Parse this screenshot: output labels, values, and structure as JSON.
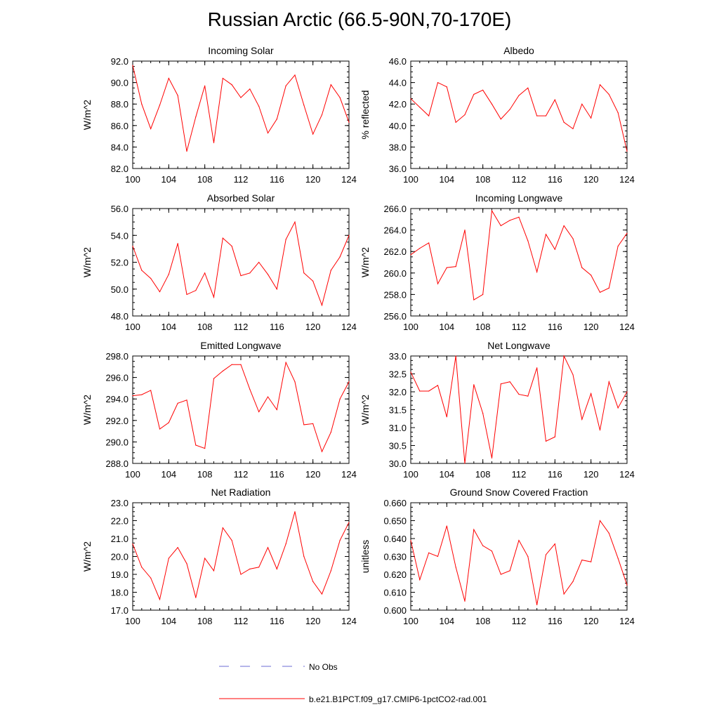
{
  "title": "Russian Arctic (66.5-90N,70-170E)",
  "legend": {
    "obs_label": "No Obs",
    "model_label": "b.e21.B1PCT.f09_g17.CMIP6-1pctCO2-rad.001",
    "obs_color": "#6b6bd6",
    "model_color": "#ff0000"
  },
  "chart_data": [
    {
      "type": "line",
      "title": "Incoming Solar",
      "ylabel": "W/m^2",
      "ylim": [
        82,
        92
      ],
      "yticks": [
        82,
        84,
        86,
        88,
        90,
        92
      ],
      "ydec": 1,
      "xticks": [
        100,
        104,
        108,
        112,
        116,
        120,
        124
      ],
      "xlim": [
        100,
        124
      ],
      "x": [
        100,
        101,
        102,
        103,
        104,
        105,
        106,
        107,
        108,
        109,
        110,
        111,
        112,
        113,
        114,
        115,
        116,
        117,
        118,
        119,
        120,
        121,
        122,
        123,
        124
      ],
      "series": [
        {
          "values": [
            91.6,
            88.0,
            85.7,
            87.9,
            90.4,
            88.8,
            83.6,
            86.8,
            89.7,
            84.4,
            90.4,
            89.8,
            88.6,
            89.4,
            87.8,
            85.3,
            86.6,
            89.7,
            90.7,
            87.9,
            85.2,
            87.0,
            89.8,
            88.6,
            86.3
          ]
        }
      ]
    },
    {
      "type": "line",
      "title": "Albedo",
      "ylabel": "% reflected",
      "ylim": [
        36,
        46
      ],
      "yticks": [
        36,
        38,
        40,
        42,
        44,
        46
      ],
      "ydec": 1,
      "xticks": [
        100,
        104,
        108,
        112,
        116,
        120,
        124
      ],
      "xlim": [
        100,
        124
      ],
      "x": [
        100,
        101,
        102,
        103,
        104,
        105,
        106,
        107,
        108,
        109,
        110,
        111,
        112,
        113,
        114,
        115,
        116,
        117,
        118,
        119,
        120,
        121,
        122,
        123,
        124
      ],
      "series": [
        {
          "values": [
            42.5,
            41.7,
            40.9,
            44.0,
            43.6,
            40.3,
            41.0,
            42.9,
            43.3,
            42.0,
            40.6,
            41.5,
            42.8,
            43.5,
            40.9,
            40.9,
            42.4,
            40.3,
            39.7,
            42.0,
            40.7,
            43.8,
            42.9,
            41.2,
            37.6
          ]
        }
      ]
    },
    {
      "type": "line",
      "title": "Absorbed Solar",
      "ylabel": "W/m^2",
      "ylim": [
        48,
        56
      ],
      "yticks": [
        48,
        50,
        52,
        54,
        56
      ],
      "ydec": 1,
      "xticks": [
        100,
        104,
        108,
        112,
        116,
        120,
        124
      ],
      "xlim": [
        100,
        124
      ],
      "x": [
        100,
        101,
        102,
        103,
        104,
        105,
        106,
        107,
        108,
        109,
        110,
        111,
        112,
        113,
        114,
        115,
        116,
        117,
        118,
        119,
        120,
        121,
        122,
        123,
        124
      ],
      "series": [
        {
          "values": [
            53.2,
            51.4,
            50.8,
            49.8,
            51.1,
            53.4,
            49.6,
            49.9,
            51.2,
            49.4,
            53.8,
            53.2,
            51.0,
            51.2,
            52.0,
            51.1,
            50.0,
            53.7,
            55.0,
            51.2,
            50.6,
            48.8,
            51.4,
            52.4,
            54.0
          ]
        }
      ]
    },
    {
      "type": "line",
      "title": "Incoming Longwave",
      "ylabel": "W/m^2",
      "ylim": [
        256,
        266
      ],
      "yticks": [
        256,
        258,
        260,
        262,
        264,
        266
      ],
      "ydec": 1,
      "xticks": [
        100,
        104,
        108,
        112,
        116,
        120,
        124
      ],
      "xlim": [
        100,
        124
      ],
      "x": [
        100,
        101,
        102,
        103,
        104,
        105,
        106,
        107,
        108,
        109,
        110,
        111,
        112,
        113,
        114,
        115,
        116,
        117,
        118,
        119,
        120,
        121,
        122,
        123,
        124
      ],
      "series": [
        {
          "values": [
            261.7,
            262.3,
            262.8,
            259.0,
            260.5,
            260.6,
            264.0,
            257.5,
            258.0,
            265.8,
            264.4,
            264.9,
            265.2,
            263.0,
            260.1,
            263.6,
            262.2,
            264.4,
            263.2,
            260.5,
            259.8,
            258.2,
            258.6,
            262.5,
            263.7
          ]
        }
      ]
    },
    {
      "type": "line",
      "title": "Emitted Longwave",
      "ylabel": "W/m^2",
      "ylim": [
        288,
        298
      ],
      "yticks": [
        288,
        290,
        292,
        294,
        296,
        298
      ],
      "ydec": 1,
      "xticks": [
        100,
        104,
        108,
        112,
        116,
        120,
        124
      ],
      "xlim": [
        100,
        124
      ],
      "x": [
        100,
        101,
        102,
        103,
        104,
        105,
        106,
        107,
        108,
        109,
        110,
        111,
        112,
        113,
        114,
        115,
        116,
        117,
        118,
        119,
        120,
        121,
        122,
        123,
        124
      ],
      "series": [
        {
          "values": [
            294.3,
            294.4,
            294.8,
            291.2,
            291.8,
            293.6,
            293.9,
            289.7,
            289.4,
            295.9,
            296.6,
            297.2,
            297.2,
            294.9,
            292.8,
            294.2,
            293.0,
            297.4,
            295.6,
            291.6,
            291.7,
            289.1,
            290.9,
            294.0,
            295.6
          ]
        }
      ]
    },
    {
      "type": "line",
      "title": "Net Longwave",
      "ylabel": "W/m^2",
      "ylim": [
        30,
        33
      ],
      "yticks": [
        30.0,
        30.5,
        31.0,
        31.5,
        32.0,
        32.5,
        33.0
      ],
      "ydec": 1,
      "xticks": [
        100,
        104,
        108,
        112,
        116,
        120,
        124
      ],
      "xlim": [
        100,
        124
      ],
      "x": [
        100,
        101,
        102,
        103,
        104,
        105,
        106,
        107,
        108,
        109,
        110,
        111,
        112,
        113,
        114,
        115,
        116,
        117,
        118,
        119,
        120,
        121,
        122,
        123,
        124
      ],
      "series": [
        {
          "values": [
            32.55,
            32.02,
            32.02,
            32.18,
            31.3,
            33.0,
            30.0,
            32.2,
            31.4,
            30.15,
            32.22,
            32.28,
            31.93,
            31.88,
            32.67,
            30.62,
            30.74,
            33.0,
            32.48,
            31.23,
            31.95,
            30.93,
            32.28,
            31.55,
            32.0
          ]
        }
      ]
    },
    {
      "type": "line",
      "title": "Net Radiation",
      "ylabel": "W/m^2",
      "ylim": [
        17,
        23
      ],
      "yticks": [
        17,
        18,
        19,
        20,
        21,
        22,
        23
      ],
      "ydec": 1,
      "xticks": [
        100,
        104,
        108,
        112,
        116,
        120,
        124
      ],
      "xlim": [
        100,
        124
      ],
      "x": [
        100,
        101,
        102,
        103,
        104,
        105,
        106,
        107,
        108,
        109,
        110,
        111,
        112,
        113,
        114,
        115,
        116,
        117,
        118,
        119,
        120,
        121,
        122,
        123,
        124
      ],
      "series": [
        {
          "values": [
            20.7,
            19.4,
            18.8,
            17.6,
            19.9,
            20.5,
            19.6,
            17.7,
            19.9,
            19.2,
            21.6,
            20.9,
            19.0,
            19.3,
            19.4,
            20.5,
            19.3,
            20.7,
            22.5,
            20.0,
            18.6,
            17.9,
            19.2,
            20.9,
            21.9
          ]
        }
      ]
    },
    {
      "type": "line",
      "title": "Ground Snow Covered Fraction",
      "ylabel": "unitless",
      "ylim": [
        0.6,
        0.66
      ],
      "yticks": [
        0.6,
        0.61,
        0.62,
        0.63,
        0.64,
        0.65,
        0.66
      ],
      "ydec": 3,
      "xticks": [
        100,
        104,
        108,
        112,
        116,
        120,
        124
      ],
      "xlim": [
        100,
        124
      ],
      "x": [
        100,
        101,
        102,
        103,
        104,
        105,
        106,
        107,
        108,
        109,
        110,
        111,
        112,
        113,
        114,
        115,
        116,
        117,
        118,
        119,
        120,
        121,
        122,
        123,
        124
      ],
      "series": [
        {
          "values": [
            0.639,
            0.617,
            0.632,
            0.63,
            0.647,
            0.624,
            0.605,
            0.645,
            0.636,
            0.633,
            0.62,
            0.622,
            0.639,
            0.63,
            0.603,
            0.631,
            0.637,
            0.609,
            0.616,
            0.628,
            0.627,
            0.65,
            0.643,
            0.629,
            0.614
          ]
        }
      ]
    }
  ]
}
